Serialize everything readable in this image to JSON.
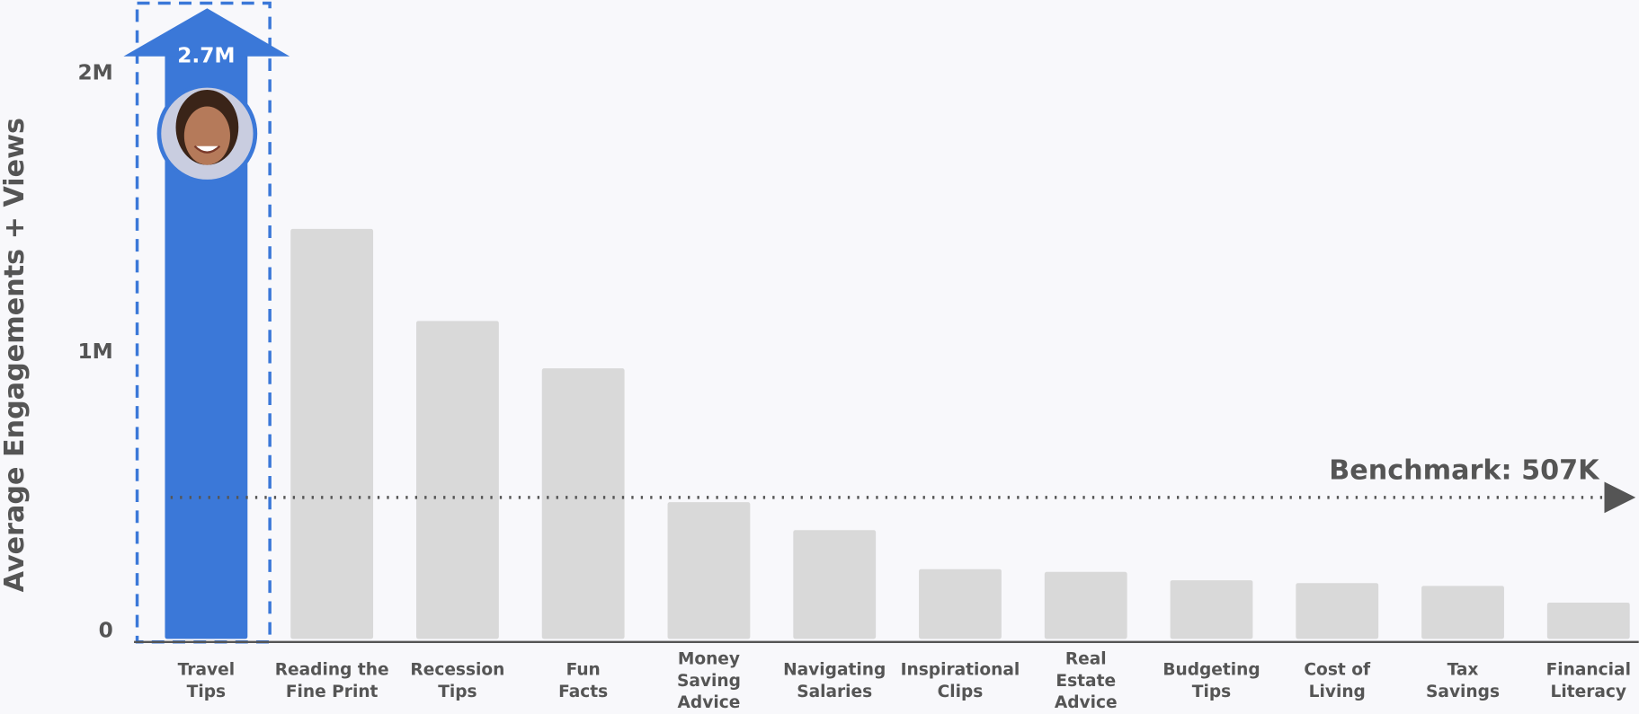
{
  "chart_data": {
    "type": "bar",
    "y_label": "Average Engagements + Views",
    "categories": [
      "Travel\nTips",
      "Reading the\nFine Print",
      "Recession\nTips",
      "Fun\nFacts",
      "Money\nSaving\nAdvice",
      "Navigating\nSalaries",
      "Inspirational\nClips",
      "Real\nEstate\nAdvice",
      "Budgeting\nTips",
      "Cost of\nLiving",
      "Tax\nSavings",
      "Financial\nLiteracy"
    ],
    "values": [
      2700000,
      1470000,
      1140000,
      970000,
      490000,
      390000,
      250000,
      240000,
      210000,
      200000,
      190000,
      130000
    ],
    "value_labels": [
      "2.7M",
      null,
      null,
      null,
      null,
      null,
      null,
      null,
      null,
      null,
      null,
      null
    ],
    "colors": [
      "#3b78d8",
      "#d9d9d9",
      "#d9d9d9",
      "#d9d9d9",
      "#d9d9d9",
      "#d9d9d9",
      "#d9d9d9",
      "#d9d9d9",
      "#d9d9d9",
      "#d9d9d9",
      "#d9d9d9",
      "#d9d9d9"
    ],
    "ylim": [
      0,
      2100000
    ],
    "yticks": [
      {
        "value": 0,
        "label": "0"
      },
      {
        "value": 1000000,
        "label": "1M"
      },
      {
        "value": 2000000,
        "label": "2M"
      }
    ],
    "benchmark": {
      "value": 507000,
      "label": "Benchmark: 507K"
    },
    "grid": false
  }
}
